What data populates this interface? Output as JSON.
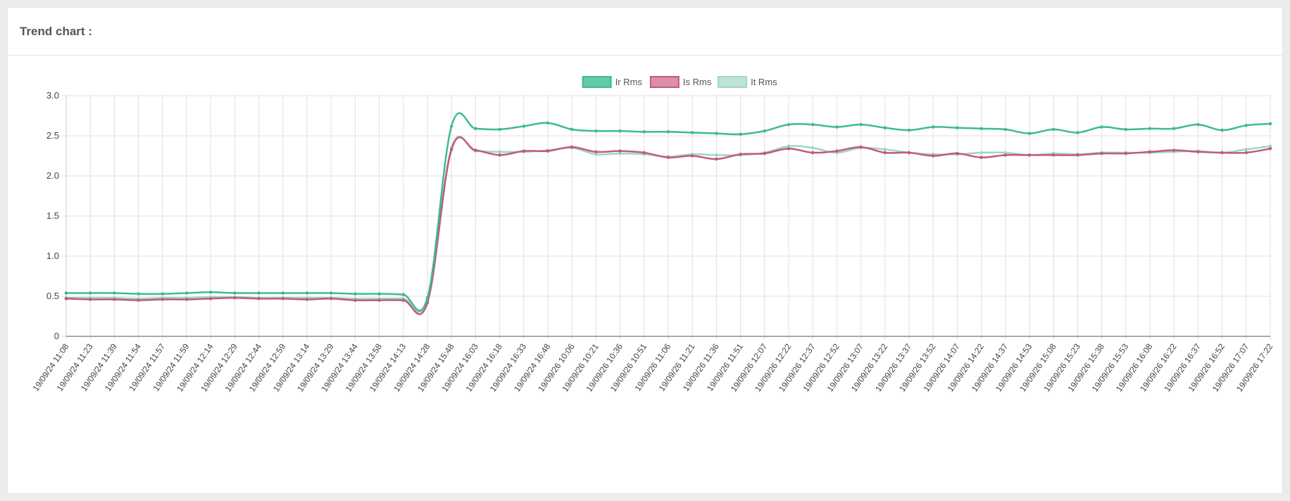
{
  "panel": {
    "title": "Trend chart :"
  },
  "colors": {
    "ir": "#3dba97",
    "is": "#c25a78",
    "it": "#9fd6c6",
    "grid": "#e4dde9",
    "axis": "#333333"
  },
  "chart_data": {
    "type": "line",
    "title": "",
    "xlabel": "",
    "ylabel": "",
    "ylim": [
      0,
      3.0
    ],
    "yticks": [
      "0",
      "0.5",
      "1.0",
      "1.5",
      "2.0",
      "2.5",
      "3.0"
    ],
    "grid": true,
    "legend_position": "top-center",
    "categories": [
      "19/09/24 11:08",
      "19/09/24 11:23",
      "19/09/24 11:39",
      "19/09/24 11:54",
      "19/09/24 11:57",
      "19/09/24 11:59",
      "19/09/24 12:14",
      "19/09/24 12:29",
      "19/09/24 12:44",
      "19/09/24 12:59",
      "19/09/24 13:14",
      "19/09/24 13:29",
      "19/09/24 13:44",
      "19/09/24 13:58",
      "19/09/24 14:13",
      "19/09/24 14:28",
      "19/09/24 15:48",
      "19/09/24 16:03",
      "19/09/24 16:18",
      "19/09/24 16:33",
      "19/09/24 16:48",
      "19/09/26 10:06",
      "19/09/26 10:21",
      "19/09/26 10:36",
      "19/09/26 10:51",
      "19/09/26 11:06",
      "19/09/26 11:21",
      "19/09/26 11:36",
      "19/09/26 11:51",
      "19/09/26 12:07",
      "19/09/26 12:22",
      "19/09/26 12:37",
      "19/09/26 12:52",
      "19/09/26 13:07",
      "19/09/26 13:22",
      "19/09/26 13:37",
      "19/09/26 13:52",
      "19/09/26 14:07",
      "19/09/26 14:22",
      "19/09/26 14:37",
      "19/09/26 14:53",
      "19/09/26 15:08",
      "19/09/26 15:23",
      "19/09/26 15:38",
      "19/09/26 15:53",
      "19/09/26 16:08",
      "19/09/26 16:22",
      "19/09/26 16:37",
      "19/09/26 16:52",
      "19/09/26 17:07",
      "19/09/26 17:22"
    ],
    "series": [
      {
        "name": "Ir Rms",
        "color": "#3dba97",
        "values": [
          0.54,
          0.54,
          0.54,
          0.53,
          0.53,
          0.54,
          0.55,
          0.54,
          0.54,
          0.54,
          0.54,
          0.54,
          0.53,
          0.53,
          0.52,
          0.48,
          2.62,
          2.59,
          2.58,
          2.62,
          2.66,
          2.58,
          2.56,
          2.56,
          2.55,
          2.55,
          2.54,
          2.53,
          2.52,
          2.56,
          2.64,
          2.64,
          2.61,
          2.64,
          2.6,
          2.57,
          2.61,
          2.6,
          2.59,
          2.58,
          2.53,
          2.58,
          2.54,
          2.61,
          2.58,
          2.59,
          2.59,
          2.64,
          2.57,
          2.63,
          2.65
        ]
      },
      {
        "name": "Is Rms",
        "color": "#c25a78",
        "values": [
          0.47,
          0.46,
          0.46,
          0.45,
          0.46,
          0.46,
          0.47,
          0.48,
          0.47,
          0.47,
          0.46,
          0.47,
          0.45,
          0.45,
          0.45,
          0.42,
          2.33,
          2.32,
          2.26,
          2.31,
          2.31,
          2.36,
          2.3,
          2.31,
          2.29,
          2.23,
          2.25,
          2.21,
          2.27,
          2.28,
          2.34,
          2.29,
          2.31,
          2.36,
          2.29,
          2.29,
          2.25,
          2.28,
          2.23,
          2.26,
          2.26,
          2.26,
          2.26,
          2.28,
          2.28,
          2.3,
          2.32,
          2.3,
          2.29,
          2.29,
          2.34
        ]
      },
      {
        "name": "It Rms",
        "color": "#9fd6c6",
        "values": [
          0.48,
          0.48,
          0.48,
          0.47,
          0.48,
          0.48,
          0.49,
          0.49,
          0.48,
          0.48,
          0.48,
          0.48,
          0.47,
          0.47,
          0.47,
          0.45,
          2.35,
          2.31,
          2.3,
          2.3,
          2.32,
          2.35,
          2.27,
          2.28,
          2.27,
          2.24,
          2.27,
          2.26,
          2.26,
          2.29,
          2.37,
          2.35,
          2.29,
          2.35,
          2.33,
          2.29,
          2.27,
          2.27,
          2.29,
          2.29,
          2.26,
          2.28,
          2.27,
          2.29,
          2.29,
          2.29,
          2.3,
          2.31,
          2.29,
          2.33,
          2.37
        ]
      }
    ]
  }
}
